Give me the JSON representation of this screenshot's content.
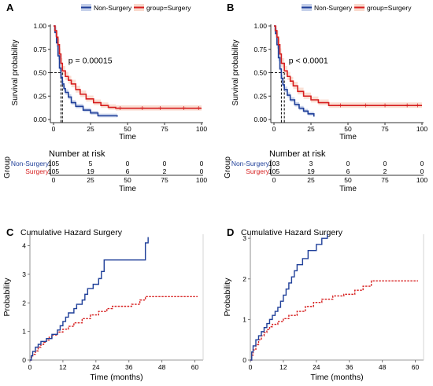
{
  "colors": {
    "non_surgery": "#1f3f99",
    "surgery": "#d61e1e",
    "non_surgery_band": "#c5d0ea",
    "surgery_band": "#f9d9cd",
    "axis": "#333333"
  },
  "chart_data": [
    {
      "id": "A",
      "type": "line",
      "panel_label": "A",
      "legend": {
        "non_surgery": "Non-Surgery",
        "surgery": "group=Surgery"
      },
      "ylabel": "Survival probability",
      "xlabel": "Time",
      "xlim": [
        0,
        100
      ],
      "ylim": [
        0,
        1
      ],
      "xticks": [
        0,
        25,
        50,
        75,
        100
      ],
      "yticks": [
        "0.00",
        "0.25",
        "0.50",
        "0.75",
        "1.00"
      ],
      "pvalue": "p = 0.00015",
      "median_times": [
        5,
        6
      ],
      "series": [
        {
          "name": "Non-Surgery",
          "steps": [
            [
              0,
              1
            ],
            [
              1,
              0.93
            ],
            [
              2,
              0.82
            ],
            [
              3,
              0.68
            ],
            [
              4,
              0.55
            ],
            [
              5,
              0.45
            ],
            [
              6,
              0.38
            ],
            [
              7,
              0.33
            ],
            [
              8,
              0.29
            ],
            [
              10,
              0.24
            ],
            [
              12,
              0.18
            ],
            [
              15,
              0.14
            ],
            [
              20,
              0.1
            ],
            [
              25,
              0.07
            ],
            [
              30,
              0.04
            ],
            [
              43,
              0.03
            ]
          ],
          "censor": []
        },
        {
          "name": "Surgery",
          "steps": [
            [
              0,
              1
            ],
            [
              1,
              0.95
            ],
            [
              2,
              0.88
            ],
            [
              3,
              0.8
            ],
            [
              4,
              0.7
            ],
            [
              5,
              0.6
            ],
            [
              6,
              0.52
            ],
            [
              8,
              0.46
            ],
            [
              10,
              0.42
            ],
            [
              12,
              0.38
            ],
            [
              15,
              0.32
            ],
            [
              18,
              0.27
            ],
            [
              22,
              0.22
            ],
            [
              27,
              0.18
            ],
            [
              32,
              0.15
            ],
            [
              37,
              0.13
            ],
            [
              42,
              0.12
            ],
            [
              100,
              0.12
            ]
          ],
          "censor": [
            45,
            60,
            72,
            88,
            98
          ]
        }
      ],
      "risk_table": {
        "title": "Number at risk",
        "ylabel": "Group",
        "rows": [
          {
            "label": "Non-Surgery",
            "values": [
              "105",
              "5",
              "0",
              "0",
              "0"
            ]
          },
          {
            "label": "Surgery",
            "values": [
              "105",
              "19",
              "6",
              "2",
              "0"
            ]
          }
        ],
        "xticks": [
          0,
          25,
          50,
          75,
          100
        ],
        "xlabel": "Time"
      }
    },
    {
      "id": "B",
      "type": "line",
      "panel_label": "B",
      "legend": {
        "non_surgery": "Non-Surgery",
        "surgery": "group=Surgery"
      },
      "ylabel": "Survival probability",
      "xlabel": "Time",
      "xlim": [
        0,
        100
      ],
      "ylim": [
        0,
        1
      ],
      "xticks": [
        0,
        25,
        50,
        75,
        100
      ],
      "yticks": [
        "0.00",
        "0.25",
        "0.50",
        "0.75",
        "1.00"
      ],
      "pvalue": "p < 0.0001",
      "median_times": [
        5,
        7
      ],
      "series": [
        {
          "name": "Non-Surgery",
          "steps": [
            [
              0,
              1
            ],
            [
              1,
              0.92
            ],
            [
              2,
              0.8
            ],
            [
              3,
              0.66
            ],
            [
              4,
              0.54
            ],
            [
              5,
              0.44
            ],
            [
              6,
              0.37
            ],
            [
              7,
              0.32
            ],
            [
              9,
              0.26
            ],
            [
              11,
              0.21
            ],
            [
              14,
              0.16
            ],
            [
              17,
              0.12
            ],
            [
              20,
              0.09
            ],
            [
              23,
              0.06
            ],
            [
              27,
              0.03
            ]
          ],
          "censor": []
        },
        {
          "name": "Surgery",
          "steps": [
            [
              0,
              1
            ],
            [
              1,
              0.95
            ],
            [
              2,
              0.88
            ],
            [
              3,
              0.8
            ],
            [
              4,
              0.7
            ],
            [
              5,
              0.6
            ],
            [
              7,
              0.52
            ],
            [
              9,
              0.46
            ],
            [
              11,
              0.41
            ],
            [
              13,
              0.36
            ],
            [
              16,
              0.3
            ],
            [
              20,
              0.25
            ],
            [
              25,
              0.21
            ],
            [
              30,
              0.18
            ],
            [
              37,
              0.15
            ],
            [
              100,
              0.15
            ]
          ],
          "censor": [
            45,
            62,
            75,
            90,
            97
          ]
        }
      ],
      "risk_table": {
        "title": "Number at risk",
        "ylabel": "Group",
        "rows": [
          {
            "label": "Non-Surgery",
            "values": [
              "103",
              "3",
              "0",
              "0",
              "0"
            ]
          },
          {
            "label": "Surgery",
            "values": [
              "105",
              "19",
              "6",
              "2",
              "0"
            ]
          }
        ],
        "xticks": [
          0,
          25,
          50,
          75,
          100
        ],
        "xlabel": "Time"
      }
    },
    {
      "id": "C",
      "type": "line",
      "panel_label": "C",
      "title": "Cumulative Hazard Surgery",
      "ylabel": "Probability",
      "xlabel": "Time (months)",
      "xlim": [
        0,
        63
      ],
      "ylim": [
        0,
        4.4
      ],
      "xticks": [
        0,
        12,
        24,
        36,
        48,
        60
      ],
      "yticks": [
        0,
        1,
        2,
        3,
        4
      ],
      "series": [
        {
          "name": "Non-Surgery",
          "style": "solid",
          "steps": [
            [
              0,
              0
            ],
            [
              0.5,
              0.15
            ],
            [
              1,
              0.3
            ],
            [
              2,
              0.45
            ],
            [
              3,
              0.55
            ],
            [
              4,
              0.65
            ],
            [
              6,
              0.75
            ],
            [
              8,
              0.9
            ],
            [
              10,
              1.05
            ],
            [
              11,
              1.2
            ],
            [
              12,
              1.35
            ],
            [
              13,
              1.5
            ],
            [
              14,
              1.65
            ],
            [
              16,
              1.8
            ],
            [
              17,
              1.95
            ],
            [
              19,
              2.1
            ],
            [
              20,
              2.3
            ],
            [
              21,
              2.5
            ],
            [
              23,
              2.65
            ],
            [
              25,
              2.85
            ],
            [
              26,
              3.1
            ],
            [
              27,
              3.5
            ],
            [
              42,
              4.1
            ],
            [
              43,
              4.3
            ]
          ]
        },
        {
          "name": "Surgery",
          "style": "dashed",
          "steps": [
            [
              0,
              0
            ],
            [
              0.5,
              0.1
            ],
            [
              1,
              0.2
            ],
            [
              2,
              0.32
            ],
            [
              3,
              0.45
            ],
            [
              4,
              0.55
            ],
            [
              5,
              0.62
            ],
            [
              6,
              0.7
            ],
            [
              7,
              0.8
            ],
            [
              8,
              0.88
            ],
            [
              10,
              0.98
            ],
            [
              12,
              1.08
            ],
            [
              14,
              1.18
            ],
            [
              16,
              1.3
            ],
            [
              19,
              1.45
            ],
            [
              22,
              1.58
            ],
            [
              25,
              1.7
            ],
            [
              28,
              1.8
            ],
            [
              30,
              1.88
            ],
            [
              37,
              1.95
            ],
            [
              40,
              2.1
            ],
            [
              42,
              2.22
            ],
            [
              61,
              2.22
            ]
          ]
        }
      ]
    },
    {
      "id": "D",
      "type": "line",
      "panel_label": "D",
      "title": "Cumulative Hazard Surgery",
      "ylabel": "Probability",
      "xlabel": "Time (months)",
      "xlim": [
        0,
        63
      ],
      "ylim": [
        0,
        3.1
      ],
      "xticks": [
        0,
        12,
        24,
        36,
        48,
        60
      ],
      "yticks": [
        0,
        1,
        2,
        3
      ],
      "series": [
        {
          "name": "Non-Surgery",
          "style": "solid",
          "steps": [
            [
              0,
              0
            ],
            [
              0.5,
              0.2
            ],
            [
              1,
              0.35
            ],
            [
              2,
              0.5
            ],
            [
              3,
              0.6
            ],
            [
              4,
              0.7
            ],
            [
              5,
              0.8
            ],
            [
              6,
              0.9
            ],
            [
              7,
              1.0
            ],
            [
              8,
              1.1
            ],
            [
              9,
              1.2
            ],
            [
              10,
              1.3
            ],
            [
              11,
              1.45
            ],
            [
              12,
              1.6
            ],
            [
              13,
              1.75
            ],
            [
              14,
              1.9
            ],
            [
              15,
              2.05
            ],
            [
              16,
              2.2
            ],
            [
              17,
              2.35
            ],
            [
              19,
              2.5
            ],
            [
              21,
              2.7
            ],
            [
              24,
              2.85
            ],
            [
              26,
              3.0
            ],
            [
              28,
              3.1
            ]
          ]
        },
        {
          "name": "Surgery",
          "style": "dashed",
          "steps": [
            [
              0,
              0
            ],
            [
              0.5,
              0.12
            ],
            [
              1,
              0.25
            ],
            [
              2,
              0.38
            ],
            [
              3,
              0.5
            ],
            [
              4,
              0.6
            ],
            [
              5,
              0.68
            ],
            [
              6,
              0.75
            ],
            [
              7,
              0.82
            ],
            [
              8,
              0.88
            ],
            [
              10,
              0.95
            ],
            [
              12,
              1.02
            ],
            [
              14,
              1.1
            ],
            [
              17,
              1.2
            ],
            [
              20,
              1.32
            ],
            [
              23,
              1.42
            ],
            [
              26,
              1.5
            ],
            [
              30,
              1.58
            ],
            [
              34,
              1.62
            ],
            [
              38,
              1.72
            ],
            [
              41,
              1.82
            ],
            [
              44,
              1.95
            ],
            [
              61,
              1.95
            ]
          ]
        }
      ]
    }
  ]
}
